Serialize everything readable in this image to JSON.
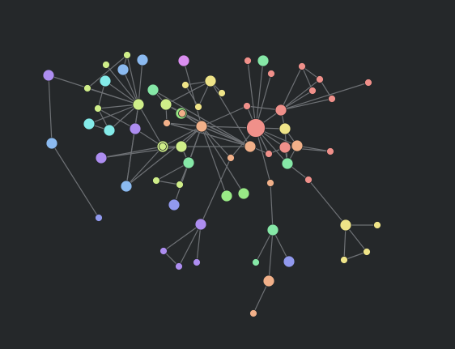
{
  "canvas": {
    "background": "#25282a",
    "edge_color": "#6e7175"
  },
  "palette": {
    "salmon": "#f0908a",
    "orange": "#f1b089",
    "yellow": "#efe488",
    "lime": "#cfee89",
    "green": "#99ea86",
    "mint": "#86e8a7",
    "cyan": "#84ebe9",
    "blue": "#8bbaf0",
    "indigo": "#9199ee",
    "violet": "#ad8df0",
    "magenta": "#da8ef0"
  },
  "nodes": [
    {
      "id": 0,
      "color": "salmon",
      "size": 3
    },
    {
      "id": 1,
      "color": "salmon",
      "size": 2
    },
    {
      "id": 2,
      "color": "mint",
      "size": 2
    },
    {
      "id": 3,
      "color": "salmon",
      "size": 1
    },
    {
      "id": 4,
      "color": "salmon",
      "size": 1
    },
    {
      "id": 5,
      "color": "salmon",
      "size": 1
    },
    {
      "id": 6,
      "color": "salmon",
      "size": 1
    },
    {
      "id": 7,
      "color": "salmon",
      "size": 1
    },
    {
      "id": 8,
      "color": "salmon",
      "size": 1
    },
    {
      "id": 9,
      "color": "salmon",
      "size": 1
    },
    {
      "id": 10,
      "color": "yellow",
      "size": 2
    },
    {
      "id": 11,
      "color": "salmon",
      "size": 2
    },
    {
      "id": 12,
      "color": "orange",
      "size": 1
    },
    {
      "id": 13,
      "color": "salmon",
      "size": 1
    },
    {
      "id": 14,
      "color": "orange",
      "size": 2
    },
    {
      "id": 15,
      "color": "salmon",
      "size": 1
    },
    {
      "id": 16,
      "color": "mint",
      "size": 2
    },
    {
      "id": 17,
      "color": "salmon",
      "size": 1
    },
    {
      "id": 18,
      "color": "orange",
      "size": 1
    },
    {
      "id": 19,
      "color": "orange",
      "size": 1
    },
    {
      "id": 20,
      "color": "yellow",
      "size": 2
    },
    {
      "id": 21,
      "color": "yellow",
      "size": 1
    },
    {
      "id": 22,
      "color": "yellow",
      "size": 1
    },
    {
      "id": 23,
      "color": "yellow",
      "size": 1
    },
    {
      "id": 24,
      "color": "orange",
      "size": 2
    },
    {
      "id": 25,
      "color": "lime",
      "size": 2
    },
    {
      "id": 26,
      "color": "green",
      "size": 2
    },
    {
      "id": 27,
      "color": "mint",
      "size": 2
    },
    {
      "id": 28,
      "color": "mint",
      "size": 1
    },
    {
      "id": 29,
      "color": "indigo",
      "size": 2
    },
    {
      "id": 30,
      "color": "orange",
      "size": 2
    },
    {
      "id": 31,
      "color": "salmon",
      "size": 1
    },
    {
      "id": 32,
      "color": "orange",
      "size": 2
    },
    {
      "id": 33,
      "color": "orange",
      "size": 1
    },
    {
      "id": 34,
      "color": "orange",
      "size": 1
    },
    {
      "id": 35,
      "color": "green",
      "size": 2
    },
    {
      "id": 36,
      "color": "green",
      "size": 2
    },
    {
      "id": 37,
      "color": "mint",
      "size": 2
    },
    {
      "id": 38,
      "color": "yellow",
      "size": 2
    },
    {
      "id": 39,
      "color": "magenta",
      "size": 2
    },
    {
      "id": 40,
      "color": "green",
      "size": 2
    },
    {
      "id": 41,
      "color": "green",
      "size": 2
    },
    {
      "id": 42,
      "color": "blue",
      "size": 2
    },
    {
      "id": 43,
      "color": "lime",
      "size": 2
    },
    {
      "id": 44,
      "color": "lime",
      "size": 2
    },
    {
      "id": 45,
      "color": "green",
      "size": 2
    },
    {
      "id": 46,
      "color": "mint",
      "size": 2
    },
    {
      "id": 47,
      "color": "lime",
      "size": 1
    },
    {
      "id": 48,
      "color": "lime",
      "size": 1
    },
    {
      "id": 49,
      "color": "indigo",
      "size": 2
    },
    {
      "id": 50,
      "color": "lime",
      "size": 2
    },
    {
      "id": 51,
      "color": "cyan",
      "size": 2
    },
    {
      "id": 52,
      "color": "blue",
      "size": 2
    },
    {
      "id": 53,
      "color": "lime",
      "size": 1
    },
    {
      "id": 54,
      "color": "lime",
      "size": 1
    },
    {
      "id": 55,
      "color": "blue",
      "size": 2
    },
    {
      "id": 56,
      "color": "cyan",
      "size": 2
    },
    {
      "id": 57,
      "color": "cyan",
      "size": 2
    },
    {
      "id": 58,
      "color": "lime",
      "size": 1
    },
    {
      "id": 59,
      "color": "lime",
      "size": 1
    },
    {
      "id": 60,
      "color": "lime",
      "size": 1
    },
    {
      "id": 61,
      "color": "violet",
      "size": 2
    },
    {
      "id": 62,
      "color": "violet",
      "size": 2
    },
    {
      "id": 63,
      "color": "violet",
      "size": 2
    },
    {
      "id": 64,
      "color": "blue",
      "size": 2
    },
    {
      "id": 65,
      "color": "indigo",
      "size": 1
    },
    {
      "id": 66,
      "color": "violet",
      "size": 2
    },
    {
      "id": 67,
      "color": "violet",
      "size": 1
    },
    {
      "id": 68,
      "color": "violet",
      "size": 1
    },
    {
      "id": 69,
      "color": "violet",
      "size": 1
    },
    {
      "id": 70,
      "color": "mint",
      "size": 2
    },
    {
      "id": 71,
      "color": "mint",
      "size": 1
    },
    {
      "id": 72,
      "color": "indigo",
      "size": 2
    },
    {
      "id": 73,
      "color": "orange",
      "size": 2
    },
    {
      "id": 74,
      "color": "orange",
      "size": 1
    },
    {
      "id": 75,
      "color": "salmon",
      "size": 1
    },
    {
      "id": 76,
      "color": "yellow",
      "size": 2
    },
    {
      "id": 77,
      "color": "yellow",
      "size": 1
    },
    {
      "id": 78,
      "color": "yellow",
      "size": 1
    },
    {
      "id": 79,
      "color": "yellow",
      "size": 1
    }
  ],
  "edges": [
    [
      0,
      1
    ],
    [
      0,
      2
    ],
    [
      0,
      3
    ],
    [
      0,
      4
    ],
    [
      0,
      10
    ],
    [
      0,
      11
    ],
    [
      0,
      12
    ],
    [
      0,
      13
    ],
    [
      0,
      14
    ],
    [
      0,
      16
    ],
    [
      0,
      18
    ],
    [
      0,
      24
    ],
    [
      0,
      31
    ],
    [
      1,
      5
    ],
    [
      1,
      6
    ],
    [
      1,
      7
    ],
    [
      1,
      8
    ],
    [
      1,
      9
    ],
    [
      1,
      10
    ],
    [
      1,
      13
    ],
    [
      5,
      6
    ],
    [
      5,
      7
    ],
    [
      6,
      8
    ],
    [
      9,
      75
    ],
    [
      11,
      12
    ],
    [
      11,
      14
    ],
    [
      11,
      15
    ],
    [
      11,
      16
    ],
    [
      11,
      31
    ],
    [
      14,
      15
    ],
    [
      14,
      16
    ],
    [
      13,
      24
    ],
    [
      24,
      31
    ],
    [
      10,
      14
    ],
    [
      10,
      16
    ],
    [
      16,
      17
    ],
    [
      17,
      76
    ],
    [
      76,
      77
    ],
    [
      76,
      78
    ],
    [
      78,
      79
    ],
    [
      76,
      79
    ],
    [
      0,
      19
    ],
    [
      19,
      70
    ],
    [
      70,
      71
    ],
    [
      70,
      72
    ],
    [
      70,
      73
    ],
    [
      73,
      74
    ],
    [
      24,
      18
    ],
    [
      18,
      66
    ],
    [
      66,
      67
    ],
    [
      66,
      68
    ],
    [
      66,
      69
    ],
    [
      67,
      68
    ],
    [
      24,
      30
    ],
    [
      24,
      33
    ],
    [
      24,
      26
    ],
    [
      24,
      41
    ],
    [
      24,
      34
    ],
    [
      24,
      38
    ],
    [
      24,
      39
    ],
    [
      24,
      40
    ],
    [
      24,
      35
    ],
    [
      24,
      36
    ],
    [
      24,
      37
    ],
    [
      24,
      44
    ],
    [
      24,
      45
    ],
    [
      24,
      29
    ],
    [
      30,
      20
    ],
    [
      30,
      25
    ],
    [
      30,
      27
    ],
    [
      30,
      28
    ],
    [
      30,
      32
    ],
    [
      30,
      33
    ],
    [
      30,
      34
    ],
    [
      20,
      21
    ],
    [
      20,
      22
    ],
    [
      20,
      23
    ],
    [
      20,
      25
    ],
    [
      21,
      22
    ],
    [
      25,
      26
    ],
    [
      25,
      27
    ],
    [
      25,
      28
    ],
    [
      43,
      44
    ],
    [
      43,
      53
    ],
    [
      44,
      45
    ],
    [
      44,
      46
    ],
    [
      44,
      61
    ],
    [
      45,
      46
    ],
    [
      46,
      47
    ],
    [
      46,
      48
    ],
    [
      47,
      48
    ],
    [
      42,
      43
    ],
    [
      42,
      50
    ],
    [
      43,
      61
    ],
    [
      49,
      61
    ],
    [
      50,
      51
    ],
    [
      50,
      52
    ],
    [
      50,
      53
    ],
    [
      50,
      54
    ],
    [
      50,
      55
    ],
    [
      50,
      56
    ],
    [
      50,
      57
    ],
    [
      50,
      58
    ],
    [
      50,
      59
    ],
    [
      50,
      60
    ],
    [
      50,
      42
    ],
    [
      50,
      63
    ],
    [
      51,
      59
    ],
    [
      52,
      60
    ],
    [
      53,
      62
    ],
    [
      56,
      57
    ],
    [
      57,
      59
    ],
    [
      58,
      60
    ],
    [
      63,
      64
    ],
    [
      64,
      65
    ],
    [
      59,
      62
    ],
    [
      42,
      41
    ]
  ]
}
